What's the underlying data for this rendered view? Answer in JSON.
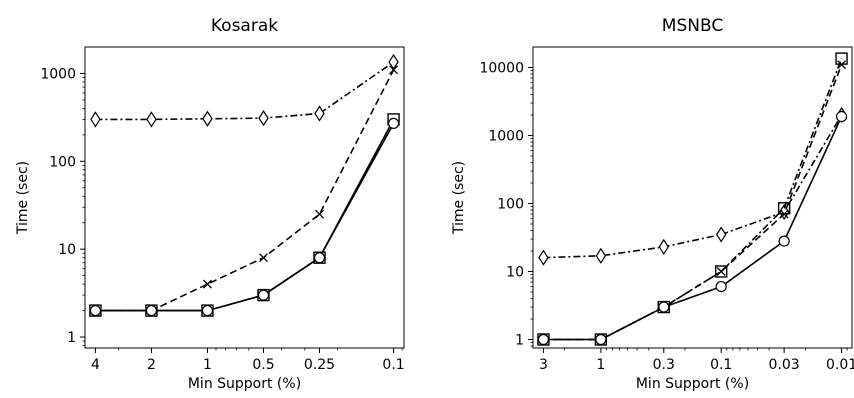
{
  "chart_data": [
    {
      "type": "line",
      "title": "Kosarak",
      "xlabel": "Min Support (%)",
      "ylabel": "Time (sec)",
      "yscale": "log",
      "ylim": [
        0.75,
        2000
      ],
      "categories": [
        "4",
        "2",
        "1",
        "0.5",
        "0.25",
        "0.1"
      ],
      "x": [
        4,
        2,
        1,
        0.5,
        0.25,
        0.1
      ],
      "y_ticks": [
        "1",
        "10",
        "100",
        "1000"
      ],
      "series": [
        {
          "marker": "diamond",
          "linestyle": "dashdot",
          "values": [
            300,
            300,
            305,
            310,
            350,
            1350
          ]
        },
        {
          "marker": "x",
          "linestyle": "dashed",
          "values": [
            2,
            2,
            4,
            8,
            25,
            1100
          ]
        },
        {
          "marker": "square",
          "linestyle": "solid",
          "values": [
            2,
            2,
            2,
            3,
            8,
            300
          ]
        },
        {
          "marker": "circle",
          "linestyle": "solid",
          "values": [
            2,
            2,
            2,
            3,
            8,
            270
          ]
        }
      ]
    },
    {
      "type": "line",
      "title": "MSNBC",
      "xlabel": "Min Support (%)",
      "ylabel": "Time (sec)",
      "yscale": "log",
      "ylim": [
        0.75,
        20000
      ],
      "categories": [
        "3",
        "1",
        "0.3",
        "0.1",
        "0.03",
        "0.01"
      ],
      "x": [
        3,
        1,
        0.3,
        0.1,
        0.03,
        0.01
      ],
      "y_ticks": [
        "1",
        "10",
        "100",
        "1000",
        "10000"
      ],
      "series": [
        {
          "marker": "diamond",
          "linestyle": "dashdot",
          "values": [
            16,
            17,
            23,
            35,
            75,
            2000
          ]
        },
        {
          "marker": "x",
          "linestyle": "dashed",
          "values": [
            1,
            1,
            3,
            10,
            70,
            11000
          ]
        },
        {
          "marker": "square",
          "linestyle": "dashdot",
          "values": [
            1,
            1,
            3,
            10,
            85,
            13500
          ]
        },
        {
          "marker": "circle",
          "linestyle": "solid",
          "values": [
            1,
            1,
            3,
            6,
            28,
            1900
          ]
        }
      ]
    }
  ]
}
